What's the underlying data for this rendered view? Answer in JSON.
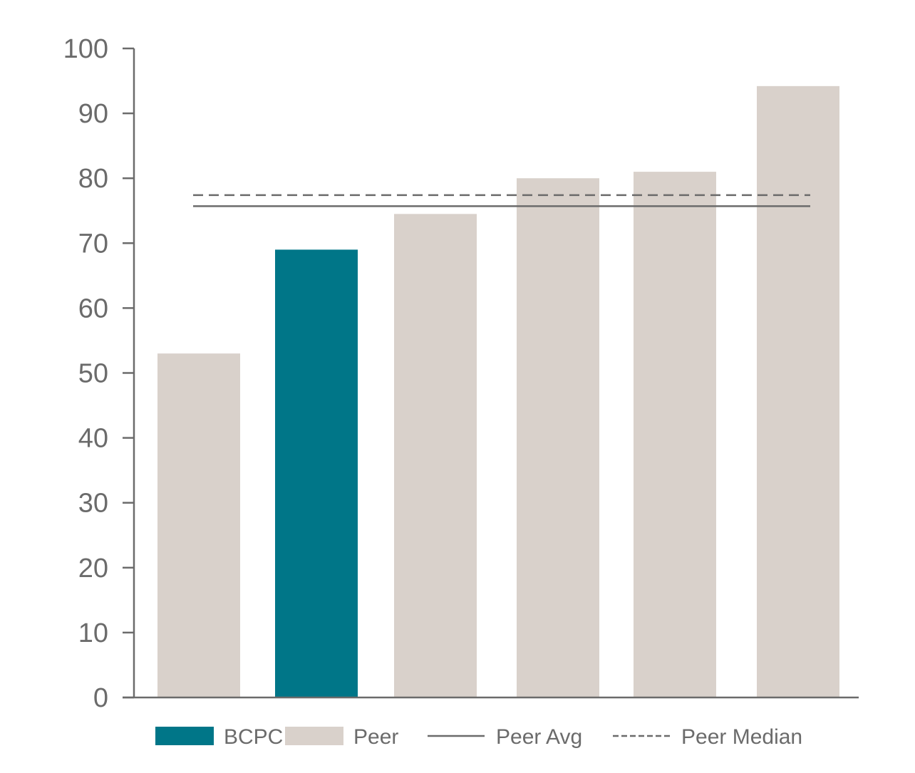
{
  "chart_data": {
    "type": "bar",
    "categories": [
      "",
      "",
      "",
      "",
      "",
      ""
    ],
    "values": [
      53,
      69,
      74.5,
      80,
      81,
      94.2
    ],
    "series_kind": [
      "Peer",
      "BCPC",
      "Peer",
      "Peer",
      "Peer",
      "Peer"
    ],
    "reference_lines": [
      {
        "name": "Peer Avg",
        "value": 75.7,
        "style": "solid"
      },
      {
        "name": "Peer Median",
        "value": 77.4,
        "style": "dashed"
      }
    ],
    "ylim": [
      0,
      100
    ],
    "yticks": [
      0,
      10,
      20,
      30,
      40,
      50,
      60,
      70,
      80,
      90,
      100
    ],
    "grid": false,
    "legend_position": "bottom",
    "legend": [
      {
        "label": "BCPC",
        "kind": "bar",
        "color": "#007688"
      },
      {
        "label": "Peer",
        "kind": "bar",
        "color": "#d9d1cb"
      },
      {
        "label": "Peer Avg",
        "kind": "line",
        "color": "#6b6b6b"
      },
      {
        "label": "Peer Median",
        "kind": "dashed",
        "color": "#6b6b6b"
      }
    ],
    "colors": {
      "BCPC": "#007688",
      "Peer": "#d9d1cb",
      "axis": "#6b6b6b",
      "text": "#6b6b6b"
    }
  }
}
